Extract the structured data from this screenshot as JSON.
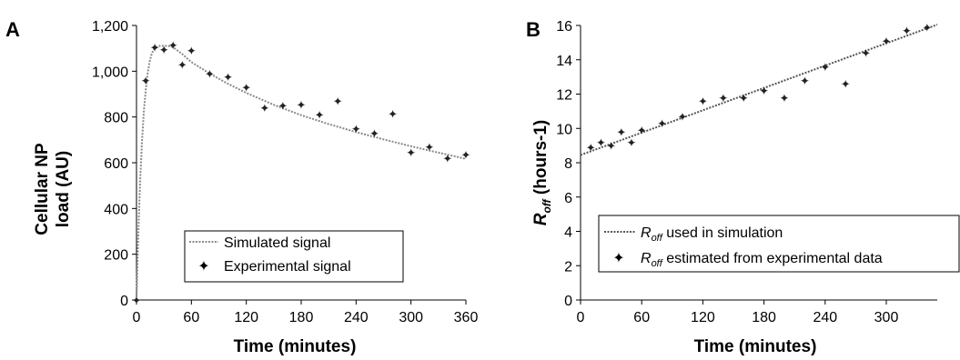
{
  "chart_data": [
    {
      "panel_label": "A",
      "type": "line",
      "xlabel": "Time (minutes)",
      "ylabel": [
        "Cellular NP",
        "load (AU)"
      ],
      "xlim": [
        0,
        360
      ],
      "ylim": [
        0,
        1200
      ],
      "xticks": [
        0,
        60,
        120,
        180,
        240,
        300,
        360
      ],
      "yticks": [
        0,
        200,
        400,
        600,
        800,
        1000,
        1200
      ],
      "ytick_labels": [
        "0",
        "200",
        "400",
        "600",
        "800",
        "1,000",
        "1,200"
      ],
      "grid": false,
      "legend_position": "bottom-center",
      "series": [
        {
          "name": "Simulated signal",
          "style": "dotted-line",
          "color": "#8a8a8a",
          "x": [
            0,
            2,
            4,
            6,
            8,
            10,
            12,
            14,
            16,
            18,
            20,
            25,
            30,
            35,
            40,
            50,
            60,
            80,
            100,
            120,
            150,
            180,
            210,
            240,
            270,
            300,
            330,
            360
          ],
          "y": [
            0,
            290,
            520,
            690,
            820,
            915,
            985,
            1035,
            1068,
            1088,
            1100,
            1110,
            1111,
            1110,
            1105,
            1075,
            1040,
            990,
            945,
            905,
            853,
            808,
            769,
            734,
            702,
            672,
            644,
            617
          ]
        },
        {
          "name": "Experimental signal",
          "style": "star-marker",
          "color": "#222222",
          "x": [
            0,
            10,
            20,
            30,
            40,
            50,
            60,
            80,
            100,
            120,
            140,
            160,
            180,
            200,
            220,
            240,
            260,
            280,
            300,
            320,
            340,
            360
          ],
          "y": [
            0,
            960,
            1105,
            1095,
            1115,
            1030,
            1090,
            990,
            975,
            930,
            840,
            850,
            855,
            810,
            870,
            750,
            730,
            815,
            645,
            670,
            620,
            635
          ]
        }
      ]
    },
    {
      "panel_label": "B",
      "type": "scatter",
      "xlabel": "Time (minutes)",
      "ylabel": "(hours-1)",
      "ylabel_symbol": "R",
      "ylabel_subscript": "off",
      "xlim": [
        0,
        350
      ],
      "ylim": [
        0,
        16
      ],
      "xticks": [
        0,
        60,
        120,
        180,
        240,
        300
      ],
      "yticks": [
        0,
        2,
        4,
        6,
        8,
        10,
        12,
        14,
        16
      ],
      "grid": false,
      "legend_position": "bottom-right",
      "series": [
        {
          "name": "used in simulation",
          "symbol": "R",
          "subscript": "off",
          "style": "dotted-line",
          "color": "#555555",
          "x": [
            0,
            350
          ],
          "y": [
            8.45,
            16.05
          ]
        },
        {
          "name": "estimated from experimental data",
          "symbol": "R",
          "subscript": "off",
          "style": "star-marker",
          "color": "#222222",
          "x": [
            10,
            20,
            30,
            40,
            50,
            60,
            80,
            100,
            120,
            140,
            160,
            180,
            200,
            220,
            240,
            260,
            280,
            300,
            320,
            340
          ],
          "y": [
            8.9,
            9.2,
            9.0,
            9.8,
            9.2,
            9.9,
            10.3,
            10.7,
            11.6,
            11.8,
            11.8,
            12.2,
            11.8,
            12.8,
            13.6,
            12.6,
            14.4,
            15.1,
            15.7,
            15.9
          ]
        }
      ]
    }
  ]
}
